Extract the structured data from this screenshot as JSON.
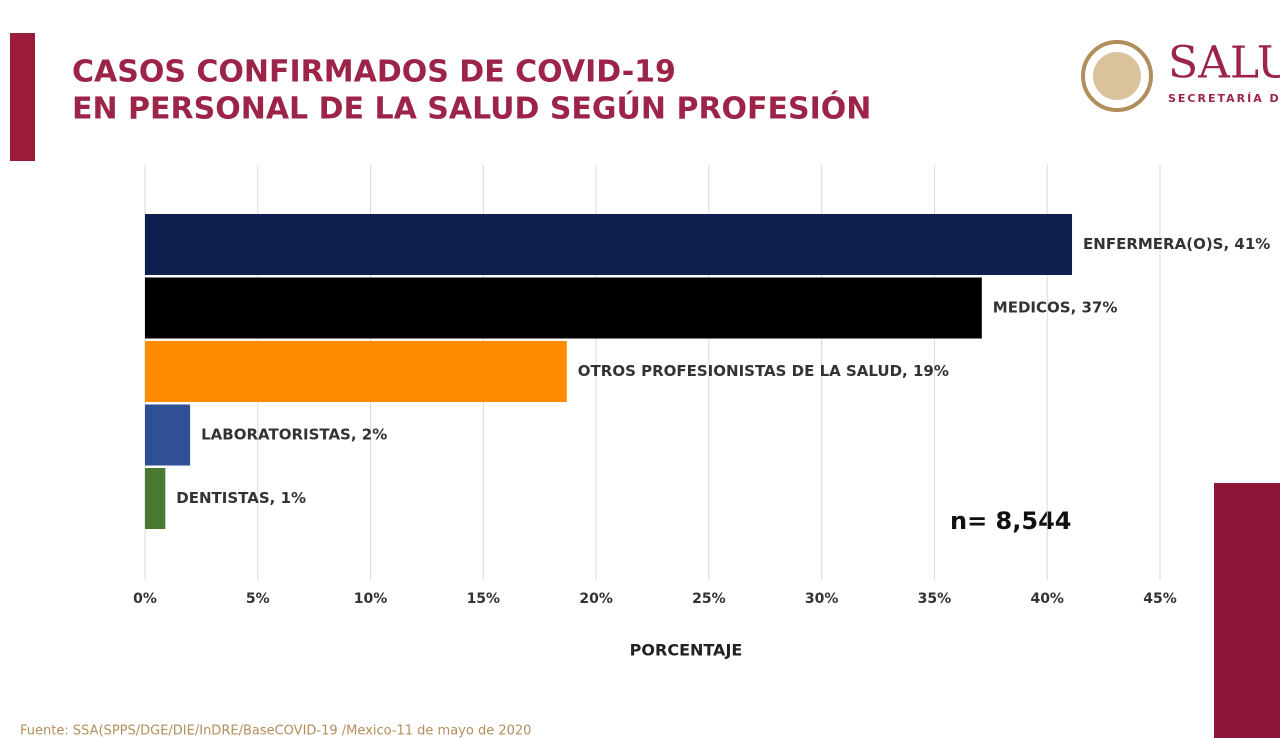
{
  "chart_data": {
    "type": "bar",
    "orientation": "horizontal",
    "title": [
      "CASOS CONFIRMADOS DE COVID-19",
      "EN PERSONAL DE LA SALUD SEGÚN PROFESIÓN"
    ],
    "values": [
      41.1,
      37.1,
      18.7,
      2.0,
      0.9
    ],
    "value_labels": [
      "ENFERMERA(O)S, 41%",
      "MEDICOS, 37%",
      "OTROS PROFESIONISTAS DE  LA SALUD, 19%",
      "LABORATORISTAS, 2%",
      "DENTISTAS, 1%"
    ],
    "colors": [
      "#0f1f4f",
      "#000000",
      "#ff8c00",
      "#2f4f96",
      "#4a7a32"
    ],
    "xlim": [
      0,
      45
    ],
    "xticks": [
      {
        "value": 0,
        "label": "0%"
      },
      {
        "value": 5,
        "label": "5%"
      },
      {
        "value": 10,
        "label": "10%"
      },
      {
        "value": 15,
        "label": "15%"
      },
      {
        "value": 20,
        "label": "20%"
      },
      {
        "value": 25,
        "label": "25%"
      },
      {
        "value": 30,
        "label": "30%"
      },
      {
        "value": 35,
        "label": "35%"
      },
      {
        "value": 40,
        "label": "40%"
      },
      {
        "value": 45,
        "label": "45%"
      }
    ],
    "grid": true,
    "xlabel": "PORCENTAJE",
    "annotation": "n= 8,544",
    "source": "Fuente: SSA(SPPS/DGE/DIE/InDRE/BaseCOVID-19 /Mexico-11 de mayo de 2020",
    "logo": "SALU",
    "logo_subtitle": "SECRETARÍA DE"
  }
}
